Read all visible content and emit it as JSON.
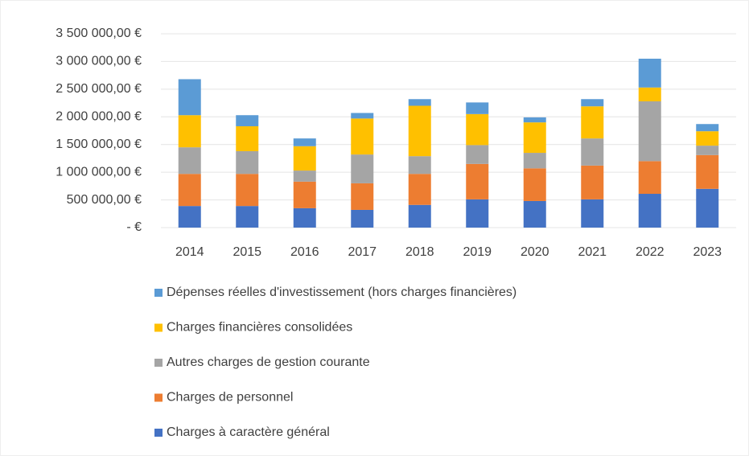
{
  "chart_data": {
    "type": "stacked_bar",
    "categories": [
      "2014",
      "2015",
      "2016",
      "2017",
      "2018",
      "2019",
      "2020",
      "2021",
      "2022",
      "2023"
    ],
    "series": [
      {
        "name": "Charges à caractère général",
        "color": "#4472c4",
        "values": [
          390000,
          390000,
          350000,
          320000,
          410000,
          510000,
          480000,
          510000,
          610000,
          700000
        ]
      },
      {
        "name": "Charges de personnel",
        "color": "#ed7d31",
        "values": [
          580000,
          580000,
          480000,
          480000,
          560000,
          640000,
          590000,
          610000,
          590000,
          610000
        ]
      },
      {
        "name": "Autres charges de gestion courante",
        "color": "#a5a5a5",
        "values": [
          480000,
          410000,
          200000,
          520000,
          320000,
          340000,
          280000,
          490000,
          1080000,
          170000
        ]
      },
      {
        "name": "Charges financières consolidées",
        "color": "#ffc000",
        "values": [
          580000,
          450000,
          440000,
          650000,
          910000,
          560000,
          550000,
          580000,
          250000,
          260000
        ]
      },
      {
        "name": "Dépenses réelles d'investissement (hors charges financières)",
        "color": "#5b9bd5",
        "values": [
          650000,
          200000,
          140000,
          100000,
          120000,
          210000,
          90000,
          130000,
          520000,
          130000
        ]
      }
    ],
    "ylim": [
      0,
      3500000
    ],
    "yticks": [
      {
        "value": 0,
        "label": "-   €"
      },
      {
        "value": 500000,
        "label": "500 000,00 €"
      },
      {
        "value": 1000000,
        "label": "1 000 000,00 €"
      },
      {
        "value": 1500000,
        "label": "1 500 000,00 €"
      },
      {
        "value": 2000000,
        "label": "2 000 000,00 €"
      },
      {
        "value": 2500000,
        "label": "2 500 000,00 €"
      },
      {
        "value": 3000000,
        "label": "3 000 000,00 €"
      },
      {
        "value": 3500000,
        "label": "3 500 000,00 €"
      }
    ],
    "grid": true
  }
}
